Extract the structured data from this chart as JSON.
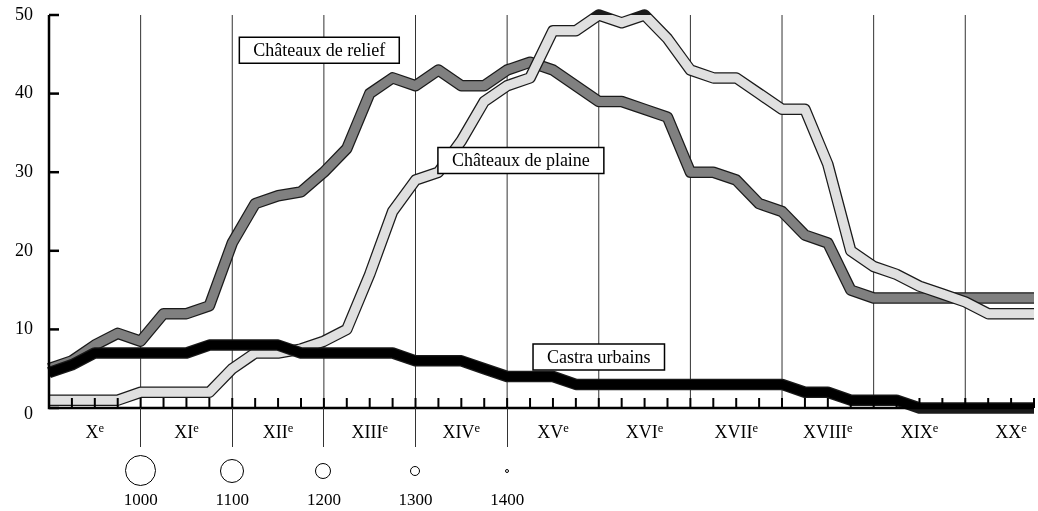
{
  "chart_data": {
    "type": "line",
    "legend": false,
    "marker": "none",
    "grid": "x",
    "categories": [
      null,
      null,
      "X$^{e}$",
      null,
      null,
      null,
      "XI$^{e}$",
      null,
      null,
      null,
      "XII$^{e}$",
      null,
      null,
      null,
      "XIII$^{e}$",
      null,
      null,
      null,
      "XIV$^{e}$",
      null,
      null,
      null,
      "XV$^{e}$",
      null,
      null,
      null,
      "XVI$^{e}$",
      null,
      null,
      null,
      "XVII$^{e}$",
      null,
      null,
      null,
      "XVIII$^{e}$",
      null,
      null,
      null,
      "XIX$^{e}$",
      null,
      null,
      null,
      "XX$^{e}$",
      null
    ],
    "ylim": [
      0,
      50
    ],
    "yticks": [
      0,
      10,
      20,
      30,
      40,
      50
    ],
    "series": [
      {
        "name": "Châteaux de relief",
        "color": "#808080",
        "values": [
          5,
          6,
          8,
          9.5,
          8.5,
          12,
          12,
          13,
          21,
          26,
          27,
          27.5,
          30,
          33,
          40,
          42,
          41,
          43,
          41,
          41,
          43,
          44,
          43,
          41,
          39,
          39,
          38,
          37,
          30,
          30,
          29,
          26,
          25,
          22,
          21,
          15,
          14,
          14,
          14,
          14,
          14,
          14,
          14,
          14
        ]
      },
      {
        "name": "Châteaux de plaine",
        "color": "#e0e0e0",
        "values": [
          1,
          1,
          1,
          1,
          2,
          2,
          2,
          2,
          5,
          7,
          7,
          7.5,
          8.5,
          10,
          17,
          25,
          29,
          30,
          34,
          39,
          41,
          42,
          48,
          48,
          50,
          49,
          50,
          47,
          43,
          42,
          42,
          40,
          38,
          38,
          31,
          20,
          18,
          17,
          15.5,
          14.5,
          13.5,
          12,
          12,
          12
        ]
      },
      {
        "name": "Castra urbains",
        "color": "#000000",
        "values": [
          4.5,
          5.5,
          7,
          7,
          7,
          7,
          7,
          8,
          8,
          8,
          8,
          7,
          7,
          7,
          7,
          7,
          6,
          6,
          6,
          5,
          4,
          4,
          4,
          3,
          3,
          3,
          3,
          3,
          3,
          3,
          3,
          3,
          3,
          2,
          2,
          1,
          1,
          1,
          0,
          0,
          0,
          0,
          0,
          0
        ]
      }
    ],
    "annotations": [
      "1000",
      "1100",
      "1200",
      "1300",
      "1400"
    ]
  }
}
